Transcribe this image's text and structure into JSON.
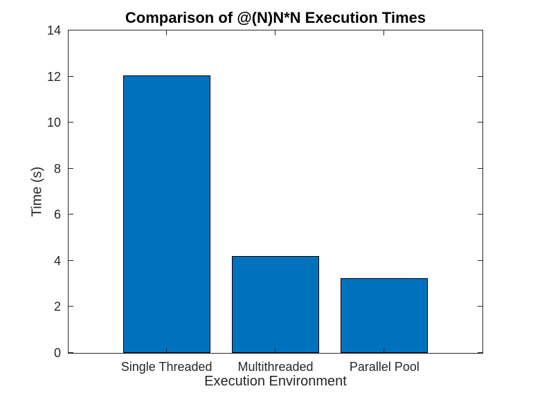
{
  "figure": {
    "background": "#ffffff"
  },
  "chart_data": {
    "type": "bar",
    "title": "Comparison of @(N)N*N Execution Times",
    "xlabel": "Execution Environment",
    "ylabel": "Time (s)",
    "categories": [
      "Single Threaded",
      "Multithreaded",
      "Parallel Pool"
    ],
    "values": [
      12.05,
      4.2,
      3.25
    ],
    "x": [
      1,
      2,
      3
    ],
    "xlim": [
      0.1,
      3.9
    ],
    "ylim": [
      0,
      14
    ],
    "yticks": [
      0,
      2,
      4,
      6,
      8,
      10,
      12,
      14
    ],
    "bar_width": 0.8,
    "bar_color": "#0072BD",
    "bar_edge_color": "#000000",
    "axis_color": "#262626",
    "tick_label_color": "#262626",
    "title_color": "#000000",
    "grid": false,
    "legend": "none",
    "box": true,
    "tick_direction": "in"
  }
}
